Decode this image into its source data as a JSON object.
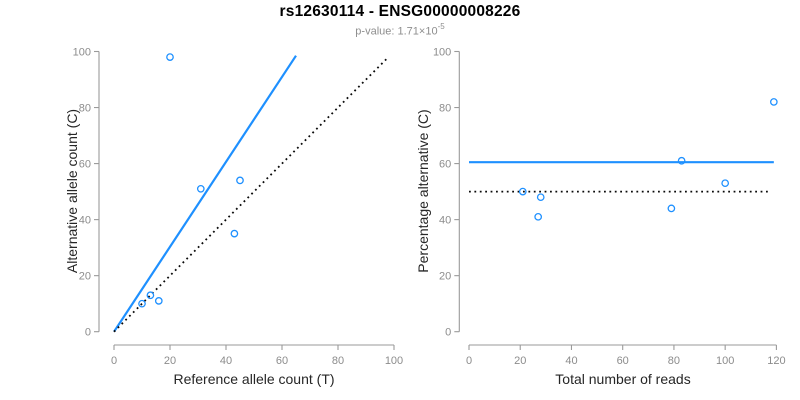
{
  "header": {
    "title": "rs12630114 - ENSG00000008226",
    "pvalue_label": "p-value: ",
    "pvalue_base": "1.71×10",
    "pvalue_exponent": "-5"
  },
  "colors": {
    "accent": "#1E90FF",
    "dark": "#0a0a0a",
    "axis": "#9a9a9a",
    "tick_label": "#8c8c8c",
    "axis_label": "#262626",
    "title": "#000000",
    "subtitle": "#8e8e8e"
  },
  "chart_data": [
    {
      "type": "scatter",
      "xlabel": "Reference allele count (T)",
      "ylabel": "Alternative allele count (C)",
      "xlim": [
        0,
        100
      ],
      "ylim": [
        0,
        100
      ],
      "xticks": [
        0,
        20,
        40,
        60,
        80,
        100
      ],
      "yticks": [
        0,
        20,
        40,
        60,
        80,
        100
      ],
      "grid": false,
      "points": [
        [
          10,
          10
        ],
        [
          13,
          13
        ],
        [
          16,
          11
        ],
        [
          20,
          98
        ],
        [
          31,
          51
        ],
        [
          43,
          35
        ],
        [
          45,
          54
        ]
      ],
      "lines": [
        {
          "name": "fit-line",
          "style": "solid",
          "x1": 0,
          "y1": 0,
          "x2": 65,
          "y2": 98.5
        },
        {
          "name": "identity-line",
          "style": "dotted",
          "x1": 0,
          "y1": 0,
          "x2": 98,
          "y2": 98
        }
      ]
    },
    {
      "type": "scatter",
      "xlabel": "Total number of reads",
      "ylabel": "Percentage alternative (C)",
      "xlim": [
        0,
        120
      ],
      "ylim": [
        0,
        100
      ],
      "xticks": [
        0,
        20,
        40,
        60,
        80,
        100,
        120
      ],
      "yticks": [
        0,
        20,
        40,
        60,
        80,
        100
      ],
      "grid": false,
      "points": [
        [
          21,
          50
        ],
        [
          27,
          41
        ],
        [
          28,
          48
        ],
        [
          79,
          44
        ],
        [
          83,
          61
        ],
        [
          100,
          53
        ],
        [
          119,
          82
        ]
      ],
      "lines": [
        {
          "name": "mean-percentage-line",
          "style": "solid",
          "x1": 0,
          "y1": 60.5,
          "x2": 119,
          "y2": 60.5
        },
        {
          "name": "expected-50-line",
          "style": "dotted",
          "x1": 0,
          "y1": 50,
          "x2": 117,
          "y2": 50
        }
      ]
    }
  ]
}
